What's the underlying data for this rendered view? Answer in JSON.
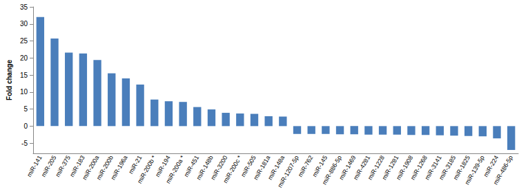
{
  "chart_data": {
    "type": "bar",
    "y_label": "Fold change",
    "categories": [
      "miR-141",
      "miR-205",
      "miR-375",
      "miR-183",
      "miR-200a",
      "miR-200b",
      "miR-196a",
      "miR-21",
      "miR-200b *",
      "miR-194",
      "miR-200a *",
      "miR-451",
      "miR-148b",
      "miR-3200",
      "miR-200c *",
      "miR-505",
      "miR-181a",
      "miR-148a",
      "miR-1207-5p",
      "miR-762",
      "miR-145",
      "miR-886-5p",
      "miR-1469",
      "miR-4281",
      "miR-1228",
      "miR-1281",
      "miR-1908",
      "miR-1268",
      "miR-3141",
      "miR-3185",
      "miR-1825",
      "miR-139-5p",
      "miR-224",
      "miR-486-5p"
    ],
    "values": [
      32,
      25.7,
      21.6,
      21.3,
      19.4,
      15.5,
      14,
      12.2,
      7.8,
      7.3,
      7.1,
      5.6,
      4.9,
      3.9,
      3.7,
      3.6,
      2.9,
      2.8,
      -2.3,
      -2.3,
      -2.3,
      -2.4,
      -2.4,
      -2.5,
      -2.5,
      -2.5,
      -2.6,
      -2.6,
      -2.7,
      -2.8,
      -2.9,
      -3.0,
      -3.6,
      -7.0
    ],
    "color": "#4a7ebb",
    "ylim": [
      -8,
      35
    ],
    "yticks": [
      -5,
      0,
      5,
      10,
      15,
      20,
      25,
      30,
      35
    ],
    "grid": false
  }
}
